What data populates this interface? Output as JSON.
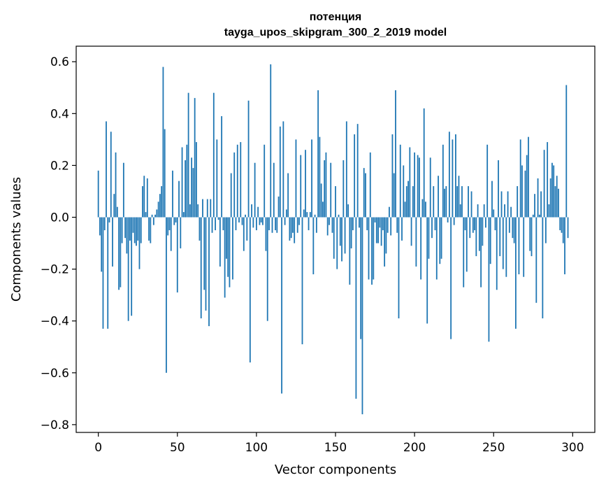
{
  "chart_data": {
    "type": "bar",
    "title": "потенция",
    "subtitle": "tayga_upos_skipgram_300_2_2019 model",
    "xlabel": "Vector components",
    "ylabel": "Components values",
    "xlim": [
      -14,
      314
    ],
    "ylim": [
      -0.83,
      0.66
    ],
    "xticks": [
      0,
      50,
      100,
      150,
      200,
      250,
      300
    ],
    "yticks": [
      -0.8,
      -0.6,
      -0.4,
      -0.2,
      0.0,
      0.2,
      0.4,
      0.6
    ],
    "ytick_labels": [
      "−0.8",
      "−0.6",
      "−0.4",
      "−0.2",
      "0.0",
      "0.2",
      "0.4",
      "0.6"
    ],
    "grid": false,
    "bar_color": "#1f77b4",
    "values": [
      0.18,
      -0.07,
      -0.21,
      -0.43,
      -0.05,
      0.37,
      -0.43,
      -0.02,
      0.33,
      -0.19,
      0.09,
      0.25,
      0.04,
      -0.28,
      -0.27,
      -0.1,
      0.21,
      -0.08,
      -0.14,
      -0.4,
      -0.09,
      -0.38,
      -0.06,
      -0.1,
      -0.11,
      -0.09,
      -0.2,
      -0.1,
      0.12,
      0.16,
      0.02,
      0.15,
      -0.09,
      -0.1,
      0.01,
      -0.03,
      0.01,
      0.03,
      0.06,
      0.09,
      0.12,
      0.58,
      0.34,
      -0.6,
      -0.07,
      -0.05,
      -0.13,
      0.18,
      -0.03,
      -0.02,
      -0.29,
      0.14,
      -0.12,
      0.27,
      0.02,
      0.22,
      0.28,
      0.48,
      0.05,
      0.23,
      0.19,
      0.46,
      0.29,
      0.05,
      -0.09,
      -0.39,
      0.07,
      -0.28,
      -0.36,
      0.07,
      -0.42,
      0.07,
      -0.06,
      0.48,
      -0.05,
      0.3,
      -0.01,
      -0.19,
      0.39,
      -0.05,
      -0.31,
      -0.16,
      -0.23,
      -0.27,
      0.17,
      -0.24,
      0.25,
      -0.05,
      0.28,
      -0.02,
      0.29,
      -0.03,
      -0.13,
      0.01,
      -0.09,
      0.45,
      -0.56,
      0.05,
      -0.04,
      0.21,
      -0.05,
      0.04,
      -0.03,
      -0.02,
      -0.03,
      0.28,
      -0.13,
      -0.4,
      -0.05,
      0.59,
      -0.06,
      0.21,
      -0.05,
      -0.06,
      0.08,
      0.35,
      -0.68,
      0.37,
      -0.03,
      0.03,
      0.17,
      -0.09,
      -0.08,
      -0.06,
      -0.1,
      0.3,
      -0.06,
      -0.03,
      0.24,
      -0.49,
      0.03,
      0.26,
      0.02,
      -0.05,
      0.02,
      0.3,
      -0.22,
      0.01,
      -0.06,
      0.49,
      0.31,
      0.13,
      0.06,
      0.22,
      0.25,
      -0.07,
      -0.03,
      0.21,
      -0.06,
      -0.16,
      0.12,
      -0.2,
      0.01,
      -0.11,
      -0.17,
      0.22,
      -0.14,
      0.37,
      0.05,
      -0.26,
      -0.12,
      -0.05,
      0.32,
      -0.7,
      0.36,
      -0.04,
      -0.47,
      -0.76,
      0.19,
      0.17,
      -0.05,
      -0.24,
      0.25,
      -0.26,
      -0.24,
      -0.02,
      -0.1,
      -0.1,
      -0.04,
      -0.11,
      -0.05,
      -0.19,
      -0.14,
      -0.06,
      0.04,
      -0.07,
      0.32,
      0.17,
      0.49,
      -0.06,
      -0.39,
      0.28,
      -0.09,
      0.2,
      0.06,
      0.12,
      0.14,
      0.27,
      -0.11,
      0.12,
      0.25,
      -0.19,
      0.24,
      0.23,
      -0.24,
      0.07,
      0.42,
      0.06,
      -0.41,
      -0.16,
      0.23,
      -0.08,
      0.12,
      -0.05,
      -0.24,
      0.16,
      -0.18,
      -0.16,
      0.28,
      0.11,
      0.12,
      -0.02,
      0.33,
      -0.47,
      0.3,
      -0.03,
      0.32,
      0.12,
      0.16,
      0.05,
      0.12,
      -0.27,
      -0.05,
      -0.21,
      0.12,
      -0.08,
      0.1,
      -0.06,
      -0.05,
      -0.15,
      0.05,
      -0.13,
      -0.27,
      -0.11,
      0.05,
      -0.04,
      0.28,
      -0.48,
      -0.18,
      0.14,
      0.03,
      -0.05,
      -0.28,
      0.22,
      -0.15,
      0.1,
      -0.2,
      0.05,
      -0.23,
      0.1,
      -0.06,
      0.04,
      -0.08,
      -0.1,
      -0.43,
      0.12,
      -0.22,
      0.3,
      0.2,
      -0.23,
      0.18,
      0.24,
      0.31,
      -0.13,
      -0.15,
      0.01,
      0.09,
      -0.33,
      0.15,
      0.01,
      0.1,
      -0.39,
      0.26,
      -0.1,
      0.29,
      0.05,
      0.15,
      0.21,
      0.2,
      0.12,
      0.16,
      0.11,
      -0.05,
      -0.06,
      -0.1,
      -0.22,
      0.51,
      -0.08
    ]
  }
}
